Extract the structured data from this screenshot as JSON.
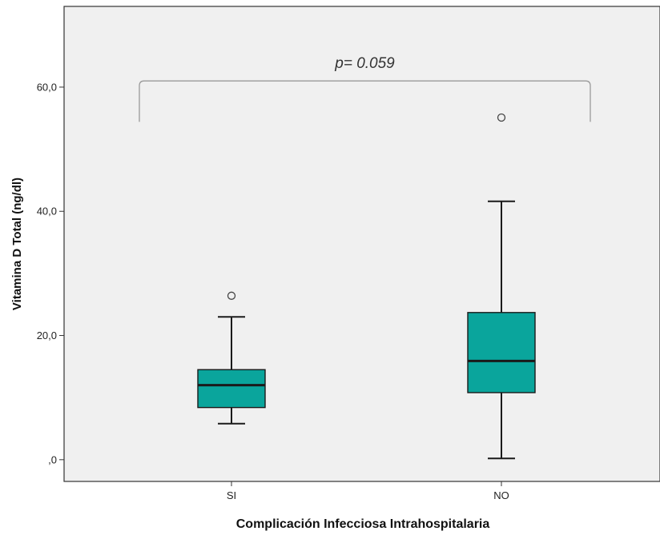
{
  "chart_data": {
    "type": "boxplot",
    "xlabel": "Complicación Infecciosa Intrahospitalaria",
    "ylabel": "Vitamina D Total (ng/dl)",
    "ylim": [
      -3.5,
      73
    ],
    "y_ticks": [
      0,
      20,
      40,
      60
    ],
    "y_tick_labels": [
      ",0",
      "20,0",
      "40,0",
      "60,0"
    ],
    "categories": [
      "SI",
      "NO"
    ],
    "boxes": [
      {
        "category": "SI",
        "whisker_low": 5.8,
        "q1": 8.4,
        "median": 12.0,
        "q3": 14.5,
        "whisker_high": 23.0,
        "outliers": [
          26.4
        ]
      },
      {
        "category": "NO",
        "whisker_low": 0.2,
        "q1": 10.8,
        "median": 15.9,
        "q3": 23.7,
        "whisker_high": 41.6,
        "outliers": [
          55.1
        ]
      }
    ],
    "annotation": {
      "text": "p= 0.059",
      "bracket_y": 61.0,
      "bracket_drop_y": 54.4
    },
    "grid": false,
    "colors": {
      "box_fill": "#0aa59c",
      "plot_background": "#f0f0f0",
      "stroke": "#1a1a1a",
      "bracket": "#9a9a9a"
    }
  }
}
